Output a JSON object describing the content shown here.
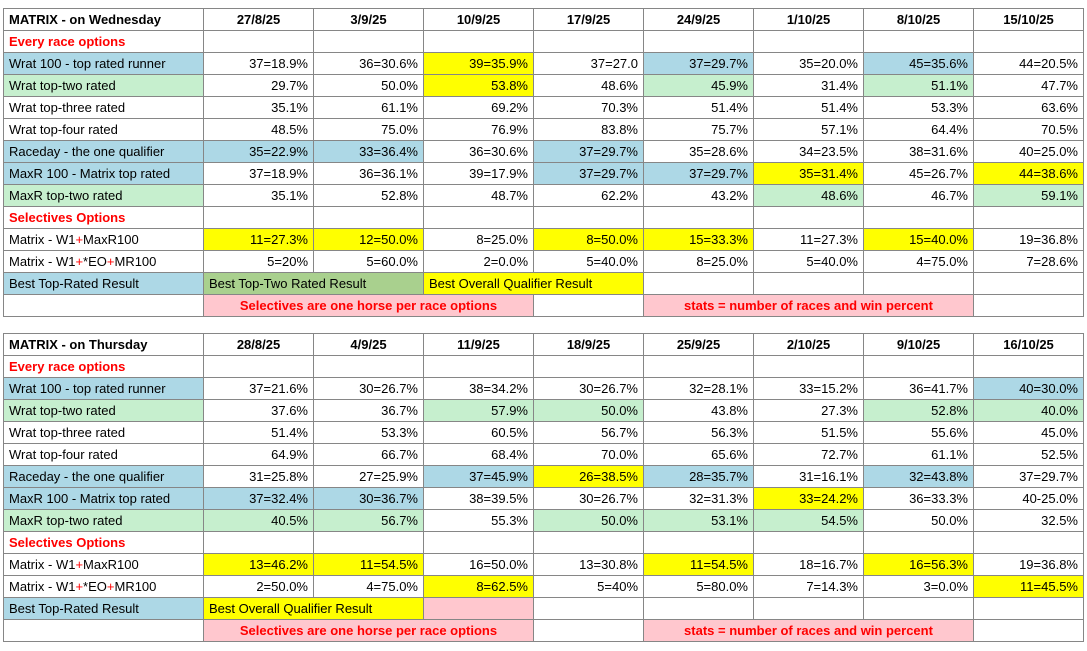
{
  "palette": {
    "blue": "#ADD8E6",
    "green": "#C6EFCE",
    "darkgreen": "#A9D08E",
    "yellow": "#FFFF00",
    "pink": "#FFC7CE",
    "red": "#FF0000"
  },
  "tables": [
    {
      "name": "wednesday",
      "title": "MATRIX - on Wednesday",
      "dates": [
        "27/8/25",
        "3/9/25",
        "10/9/25",
        "17/9/25",
        "24/9/25",
        "1/10/25",
        "8/10/25",
        "15/10/25"
      ],
      "rows": [
        {
          "cells": [
            {
              "t": "Every race options",
              "fg": "red",
              "b": true
            }
          ]
        },
        {
          "cells": [
            {
              "t": "Wrat 100 - top rated runner",
              "bg": "blue"
            },
            {
              "t": "37=18.9%"
            },
            {
              "t": "36=30.6%"
            },
            {
              "t": "39=35.9%",
              "bg": "yellow"
            },
            {
              "t": "37=27.0"
            },
            {
              "t": "37=29.7%",
              "bg": "blue"
            },
            {
              "t": "35=20.0%"
            },
            {
              "t": "45=35.6%",
              "bg": "blue"
            },
            {
              "t": "44=20.5%"
            }
          ]
        },
        {
          "cells": [
            {
              "t": "Wrat top-two rated",
              "bg": "green"
            },
            {
              "t": "29.7%"
            },
            {
              "t": "50.0%"
            },
            {
              "t": "53.8%",
              "bg": "yellow"
            },
            {
              "t": "48.6%"
            },
            {
              "t": "45.9%",
              "bg": "green"
            },
            {
              "t": "31.4%"
            },
            {
              "t": "51.1%",
              "bg": "green"
            },
            {
              "t": "47.7%"
            }
          ]
        },
        {
          "cells": [
            {
              "t": "Wrat top-three rated"
            },
            {
              "t": "35.1%"
            },
            {
              "t": "61.1%"
            },
            {
              "t": "69.2%"
            },
            {
              "t": "70.3%"
            },
            {
              "t": "51.4%"
            },
            {
              "t": "51.4%"
            },
            {
              "t": "53.3%"
            },
            {
              "t": "63.6%"
            }
          ]
        },
        {
          "cells": [
            {
              "t": "Wrat top-four rated"
            },
            {
              "t": "48.5%"
            },
            {
              "t": "75.0%"
            },
            {
              "t": "76.9%"
            },
            {
              "t": "83.8%"
            },
            {
              "t": "75.7%"
            },
            {
              "t": "57.1%"
            },
            {
              "t": "64.4%"
            },
            {
              "t": "70.5%"
            }
          ]
        },
        {
          "cells": [
            {
              "t": "Raceday - the one qualifier",
              "bg": "blue"
            },
            {
              "t": "35=22.9%",
              "bg": "blue"
            },
            {
              "t": "33=36.4%",
              "bg": "blue"
            },
            {
              "t": "36=30.6%"
            },
            {
              "t": "37=29.7%",
              "bg": "blue"
            },
            {
              "t": "35=28.6%"
            },
            {
              "t": "34=23.5%"
            },
            {
              "t": "38=31.6%"
            },
            {
              "t": "40=25.0%"
            }
          ]
        },
        {
          "cells": [
            {
              "t": "MaxR 100 - Matrix top rated",
              "bg": "blue"
            },
            {
              "t": "37=18.9%"
            },
            {
              "t": "36=36.1%"
            },
            {
              "t": "39=17.9%"
            },
            {
              "t": "37=29.7%",
              "bg": "blue"
            },
            {
              "t": "37=29.7%",
              "bg": "blue"
            },
            {
              "t": "35=31.4%",
              "bg": "yellow"
            },
            {
              "t": "45=26.7%"
            },
            {
              "t": "44=38.6%",
              "bg": "yellow"
            }
          ]
        },
        {
          "cells": [
            {
              "t": "MaxR top-two rated",
              "bg": "green"
            },
            {
              "t": "35.1%"
            },
            {
              "t": "52.8%"
            },
            {
              "t": "48.7%"
            },
            {
              "t": "62.2%"
            },
            {
              "t": "43.2%"
            },
            {
              "t": "48.6%",
              "bg": "green"
            },
            {
              "t": "46.7%"
            },
            {
              "t": "59.1%",
              "bg": "green"
            }
          ]
        },
        {
          "cells": [
            {
              "t": "Selectives Options",
              "fg": "red",
              "b": true
            }
          ]
        },
        {
          "cells": [
            {
              "parts": [
                {
                  "t": "Matrix - W1",
                  "c": "#000000"
                },
                {
                  "t": "+",
                  "c": "#FF0000"
                },
                {
                  "t": "MaxR100",
                  "c": "#000000"
                }
              ]
            },
            {
              "t": "11=27.3%",
              "bg": "yellow"
            },
            {
              "t": "12=50.0%",
              "bg": "yellow"
            },
            {
              "t": "8=25.0%"
            },
            {
              "t": "8=50.0%",
              "bg": "yellow"
            },
            {
              "t": "15=33.3%",
              "bg": "yellow"
            },
            {
              "t": "11=27.3%"
            },
            {
              "t": "15=40.0%",
              "bg": "yellow"
            },
            {
              "t": "19=36.8%"
            }
          ]
        },
        {
          "cells": [
            {
              "parts": [
                {
                  "t": "Matrix - W1",
                  "c": "#000000"
                },
                {
                  "t": "+",
                  "c": "#FF0000"
                },
                {
                  "t": "*EO",
                  "c": "#000000"
                },
                {
                  "t": "+",
                  "c": "#FF0000"
                },
                {
                  "t": "MR100",
                  "c": "#000000"
                }
              ]
            },
            {
              "t": "5=20%"
            },
            {
              "t": "5=60.0%"
            },
            {
              "t": "2=0.0%"
            },
            {
              "t": "5=40.0%"
            },
            {
              "t": "8=25.0%"
            },
            {
              "t": "5=40.0%"
            },
            {
              "t": "4=75.0%"
            },
            {
              "t": "7=28.6%"
            }
          ]
        },
        {
          "cells": [
            {
              "t": "Best Top-Rated Result",
              "bg": "blue"
            },
            {
              "t": "Best Top-Two Rated Result",
              "bg": "darkgreen",
              "span": 2,
              "a": "l"
            },
            {
              "t": "Best Overall Qualifier Result",
              "bg": "yellow",
              "span": 2,
              "a": "l"
            }
          ]
        },
        {
          "cells": [
            {
              "t": ""
            },
            {
              "t": "Selectives are one horse per race options",
              "bg": "pink",
              "fg": "red",
              "b": true,
              "span": 3,
              "a": "c"
            },
            {
              "t": ""
            },
            {
              "t": "stats = number of races and win percent",
              "bg": "pink",
              "fg": "red",
              "b": true,
              "span": 3,
              "a": "c"
            }
          ]
        }
      ]
    },
    {
      "name": "thursday",
      "title": "MATRIX - on Thursday",
      "dates": [
        "28/8/25",
        "4/9/25",
        "11/9/25",
        "18/9/25",
        "25/9/25",
        "2/10/25",
        "9/10/25",
        "16/10/25"
      ],
      "rows": [
        {
          "cells": [
            {
              "t": "Every race options",
              "fg": "red",
              "b": true
            }
          ]
        },
        {
          "cells": [
            {
              "t": "Wrat 100 - top rated runner",
              "bg": "blue"
            },
            {
              "t": "37=21.6%"
            },
            {
              "t": "30=26.7%"
            },
            {
              "t": "38=34.2%"
            },
            {
              "t": "30=26.7%"
            },
            {
              "t": "32=28.1%"
            },
            {
              "t": "33=15.2%"
            },
            {
              "t": "36=41.7%"
            },
            {
              "t": "40=30.0%",
              "bg": "blue"
            }
          ]
        },
        {
          "cells": [
            {
              "t": "Wrat top-two rated",
              "bg": "green"
            },
            {
              "t": "37.6%"
            },
            {
              "t": "36.7%"
            },
            {
              "t": "57.9%",
              "bg": "green"
            },
            {
              "t": "50.0%",
              "bg": "green"
            },
            {
              "t": "43.8%"
            },
            {
              "t": "27.3%"
            },
            {
              "t": "52.8%",
              "bg": "green"
            },
            {
              "t": "40.0%",
              "bg": "green"
            }
          ]
        },
        {
          "cells": [
            {
              "t": "Wrat top-three rated"
            },
            {
              "t": "51.4%"
            },
            {
              "t": "53.3%"
            },
            {
              "t": "60.5%"
            },
            {
              "t": "56.7%"
            },
            {
              "t": "56.3%"
            },
            {
              "t": "51.5%"
            },
            {
              "t": "55.6%"
            },
            {
              "t": "45.0%"
            }
          ]
        },
        {
          "cells": [
            {
              "t": "Wrat top-four rated"
            },
            {
              "t": "64.9%"
            },
            {
              "t": "66.7%"
            },
            {
              "t": "68.4%"
            },
            {
              "t": "70.0%"
            },
            {
              "t": "65.6%"
            },
            {
              "t": "72.7%"
            },
            {
              "t": "61.1%"
            },
            {
              "t": "52.5%"
            }
          ]
        },
        {
          "cells": [
            {
              "t": "Raceday - the one qualifier",
              "bg": "blue"
            },
            {
              "t": "31=25.8%"
            },
            {
              "t": "27=25.9%"
            },
            {
              "t": "37=45.9%",
              "bg": "blue"
            },
            {
              "t": "26=38.5%",
              "bg": "yellow"
            },
            {
              "t": "28=35.7%",
              "bg": "blue"
            },
            {
              "t": "31=16.1%"
            },
            {
              "t": "32=43.8%",
              "bg": "blue"
            },
            {
              "t": "37=29.7%"
            }
          ]
        },
        {
          "cells": [
            {
              "t": "MaxR 100 - Matrix top rated",
              "bg": "blue"
            },
            {
              "t": "37=32.4%",
              "bg": "blue"
            },
            {
              "t": "30=36.7%",
              "bg": "blue"
            },
            {
              "t": "38=39.5%"
            },
            {
              "t": "30=26.7%"
            },
            {
              "t": "32=31.3%"
            },
            {
              "t": "33=24.2%",
              "bg": "yellow"
            },
            {
              "t": "36=33.3%"
            },
            {
              "t": "40-25.0%"
            }
          ]
        },
        {
          "cells": [
            {
              "t": "MaxR top-two rated",
              "bg": "green"
            },
            {
              "t": "40.5%",
              "bg": "green"
            },
            {
              "t": "56.7%",
              "bg": "green"
            },
            {
              "t": "55.3%"
            },
            {
              "t": "50.0%",
              "bg": "green"
            },
            {
              "t": "53.1%",
              "bg": "green"
            },
            {
              "t": "54.5%",
              "bg": "green"
            },
            {
              "t": "50.0%"
            },
            {
              "t": "32.5%"
            }
          ]
        },
        {
          "cells": [
            {
              "t": "Selectives Options",
              "fg": "red",
              "b": true
            }
          ]
        },
        {
          "cells": [
            {
              "parts": [
                {
                  "t": "Matrix - W1",
                  "c": "#000000"
                },
                {
                  "t": "+",
                  "c": "#FF0000"
                },
                {
                  "t": "MaxR100",
                  "c": "#000000"
                }
              ]
            },
            {
              "t": "13=46.2%",
              "bg": "yellow"
            },
            {
              "t": "11=54.5%",
              "bg": "yellow"
            },
            {
              "t": "16=50.0%"
            },
            {
              "t": "13=30.8%"
            },
            {
              "t": "11=54.5%",
              "bg": "yellow"
            },
            {
              "t": "18=16.7%"
            },
            {
              "t": "16=56.3%",
              "bg": "yellow"
            },
            {
              "t": "19=36.8%"
            }
          ]
        },
        {
          "cells": [
            {
              "parts": [
                {
                  "t": "Matrix - W1",
                  "c": "#000000"
                },
                {
                  "t": "+",
                  "c": "#FF0000"
                },
                {
                  "t": "*EO",
                  "c": "#000000"
                },
                {
                  "t": "+",
                  "c": "#FF0000"
                },
                {
                  "t": "MR100",
                  "c": "#000000"
                }
              ]
            },
            {
              "t": "2=50.0%"
            },
            {
              "t": "4=75.0%"
            },
            {
              "t": "8=62.5%",
              "bg": "yellow"
            },
            {
              "t": "5=40%"
            },
            {
              "t": "5=80.0%"
            },
            {
              "t": "7=14.3%"
            },
            {
              "t": "3=0.0%"
            },
            {
              "t": "11=45.5%",
              "bg": "yellow"
            }
          ]
        },
        {
          "cells": [
            {
              "t": "Best Top-Rated Result",
              "bg": "blue"
            },
            {
              "t": "Best Overall Qualifier Result",
              "bg": "yellow",
              "span": 2,
              "a": "l"
            },
            {
              "t": "",
              "bg": "pink"
            }
          ]
        },
        {
          "cells": [
            {
              "t": ""
            },
            {
              "t": "Selectives are one horse per race options",
              "bg": "pink",
              "fg": "red",
              "b": true,
              "span": 3,
              "a": "c"
            },
            {
              "t": ""
            },
            {
              "t": "stats = number of races and win percent",
              "bg": "pink",
              "fg": "red",
              "b": true,
              "span": 3,
              "a": "c"
            }
          ]
        }
      ]
    }
  ]
}
